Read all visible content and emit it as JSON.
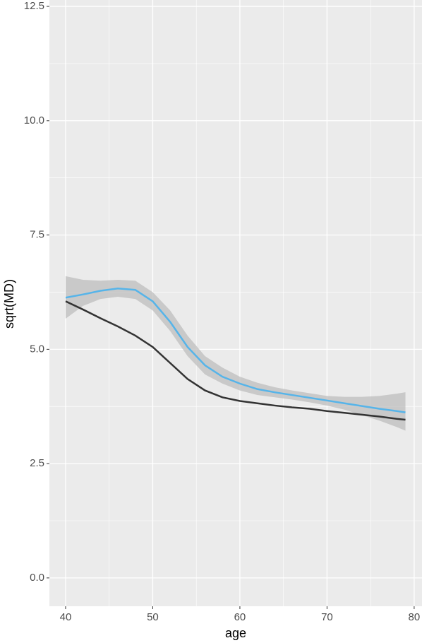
{
  "chart_data": {
    "type": "line",
    "x_label": "age",
    "y_label": "sqrt(MD)",
    "x": [
      40,
      42,
      44,
      46,
      48,
      50,
      52,
      54,
      56,
      58,
      60,
      62,
      64,
      66,
      68,
      70,
      72,
      74,
      76,
      78,
      79
    ],
    "series": [
      {
        "color": "#56b4e9",
        "band_color": "#bebebe",
        "values": [
          6.13,
          6.2,
          6.28,
          6.33,
          6.3,
          6.05,
          5.6,
          5.05,
          4.65,
          4.4,
          4.25,
          4.13,
          4.06,
          4.0,
          3.94,
          3.88,
          3.82,
          3.76,
          3.7,
          3.65,
          3.62
        ],
        "lower": [
          5.67,
          5.95,
          6.1,
          6.15,
          6.1,
          5.85,
          5.4,
          4.85,
          4.45,
          4.25,
          4.1,
          4.0,
          3.95,
          3.9,
          3.84,
          3.77,
          3.68,
          3.56,
          3.44,
          3.3,
          3.22
        ],
        "upper": [
          6.6,
          6.52,
          6.5,
          6.52,
          6.5,
          6.25,
          5.85,
          5.3,
          4.85,
          4.6,
          4.4,
          4.27,
          4.17,
          4.1,
          4.04,
          3.98,
          3.96,
          3.96,
          3.98,
          4.03,
          4.06
        ]
      },
      {
        "color": "#333333",
        "values": [
          6.05,
          5.87,
          5.68,
          5.5,
          5.3,
          5.05,
          4.7,
          4.35,
          4.1,
          3.95,
          3.87,
          3.82,
          3.77,
          3.73,
          3.7,
          3.65,
          3.61,
          3.57,
          3.53,
          3.48,
          3.46
        ]
      }
    ],
    "xlim": [
      38.14,
      80.9
    ],
    "xticks": [
      40,
      50,
      60,
      70,
      80
    ],
    "ylim": [
      -0.62,
      12.64
    ],
    "yticks": [
      {
        "value": 0,
        "label": "0.0"
      },
      2.5,
      {
        "value": 5,
        "label": "5.0"
      },
      7.5,
      {
        "value": 10,
        "label": "10.0"
      },
      12.5
    ],
    "grid": true,
    "minor_grid": true,
    "panel_color": "#ebebeb"
  }
}
